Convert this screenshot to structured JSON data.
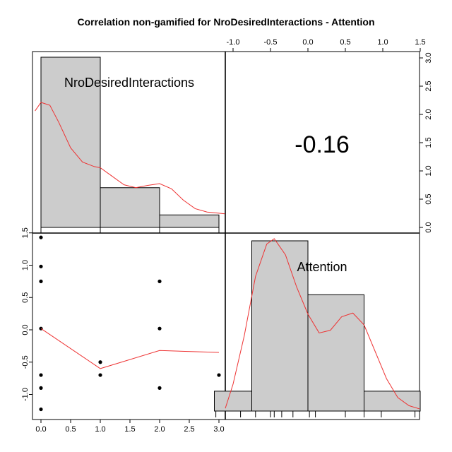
{
  "chart_data": {
    "type": "scatter",
    "title": "Correlation non-gamified for NroDesiredInteractions - Attention",
    "variables": [
      "NroDesiredInteractions",
      "Attention"
    ],
    "correlation": "-0.16",
    "x_ticks": [
      "0.0",
      "0.5",
      "1.0",
      "1.5",
      "2.0",
      "2.5",
      "3.0"
    ],
    "y_ticks_left": [
      "-1.0",
      "-0.5",
      "0.0",
      "0.5",
      "1.0",
      "1.5"
    ],
    "top_ticks": [
      "-1.0",
      "-0.5",
      "0.0",
      "0.5",
      "1.0",
      "1.5"
    ],
    "right_ticks": [
      "0.0",
      "0.5",
      "1.0",
      "1.5",
      "2.0",
      "2.5",
      "3.0"
    ],
    "histogram_nro": {
      "bins": [
        [
          0,
          1
        ],
        [
          1,
          2
        ],
        [
          2,
          3
        ]
      ],
      "heights": [
        3.0,
        0.7,
        0.22
      ],
      "density_curve": [
        [
          -0.1,
          2.05
        ],
        [
          0,
          2.2
        ],
        [
          0.15,
          2.15
        ],
        [
          0.3,
          1.85
        ],
        [
          0.5,
          1.4
        ],
        [
          0.7,
          1.15
        ],
        [
          0.9,
          1.07
        ],
        [
          1.0,
          1.05
        ],
        [
          1.2,
          0.9
        ],
        [
          1.4,
          0.75
        ],
        [
          1.6,
          0.7
        ],
        [
          1.8,
          0.74
        ],
        [
          2.0,
          0.77
        ],
        [
          2.2,
          0.68
        ],
        [
          2.4,
          0.48
        ],
        [
          2.6,
          0.33
        ],
        [
          2.8,
          0.27
        ],
        [
          3.0,
          0.25
        ],
        [
          3.1,
          0.24
        ]
      ]
    },
    "histogram_attention": {
      "bins": [
        [
          -1.25,
          -0.75
        ],
        [
          -0.75,
          0.0
        ],
        [
          0.0,
          0.75
        ],
        [
          0.75,
          1.5
        ]
      ],
      "heights": [
        0.35,
        3.0,
        2.05,
        0.35
      ],
      "density_curve": [
        [
          -1.25,
          0.05
        ],
        [
          -1.0,
          0.5
        ],
        [
          -0.85,
          1.4
        ],
        [
          -0.7,
          2.5
        ],
        [
          -0.55,
          3.1
        ],
        [
          -0.45,
          3.2
        ],
        [
          -0.3,
          2.9
        ],
        [
          -0.15,
          2.3
        ],
        [
          0.0,
          1.8
        ],
        [
          0.15,
          1.45
        ],
        [
          0.3,
          1.5
        ],
        [
          0.45,
          1.75
        ],
        [
          0.6,
          1.82
        ],
        [
          0.75,
          1.6
        ],
        [
          0.9,
          1.1
        ],
        [
          1.05,
          0.6
        ],
        [
          1.2,
          0.25
        ],
        [
          1.35,
          0.1
        ],
        [
          1.5,
          0.04
        ]
      ],
      "rug": [
        -1.23,
        -0.9,
        -0.7,
        -0.5,
        -0.45,
        -0.35,
        -0.2,
        0.02,
        0.1,
        0.5,
        0.75,
        0.98,
        1.43
      ]
    },
    "scatter_points": [
      {
        "x": 0,
        "y": 1.43
      },
      {
        "x": 0,
        "y": 0.98
      },
      {
        "x": 0,
        "y": 0.75
      },
      {
        "x": 0,
        "y": 0.02
      },
      {
        "x": 0,
        "y": -0.7
      },
      {
        "x": 0,
        "y": -0.9
      },
      {
        "x": 0,
        "y": -1.23
      },
      {
        "x": 1,
        "y": -0.5
      },
      {
        "x": 1,
        "y": -0.7
      },
      {
        "x": 2,
        "y": 0.75
      },
      {
        "x": 2,
        "y": 0.02
      },
      {
        "x": 2,
        "y": -0.9
      },
      {
        "x": 3,
        "y": -0.7
      }
    ],
    "smooth_line": [
      {
        "x": 0,
        "y": 0.02
      },
      {
        "x": 1,
        "y": -0.6
      },
      {
        "x": 2,
        "y": -0.32
      },
      {
        "x": 3,
        "y": -0.35
      }
    ],
    "colors": {
      "bar_fill": "#cccccc",
      "curve": "#ee3333",
      "axis": "#000000"
    }
  }
}
